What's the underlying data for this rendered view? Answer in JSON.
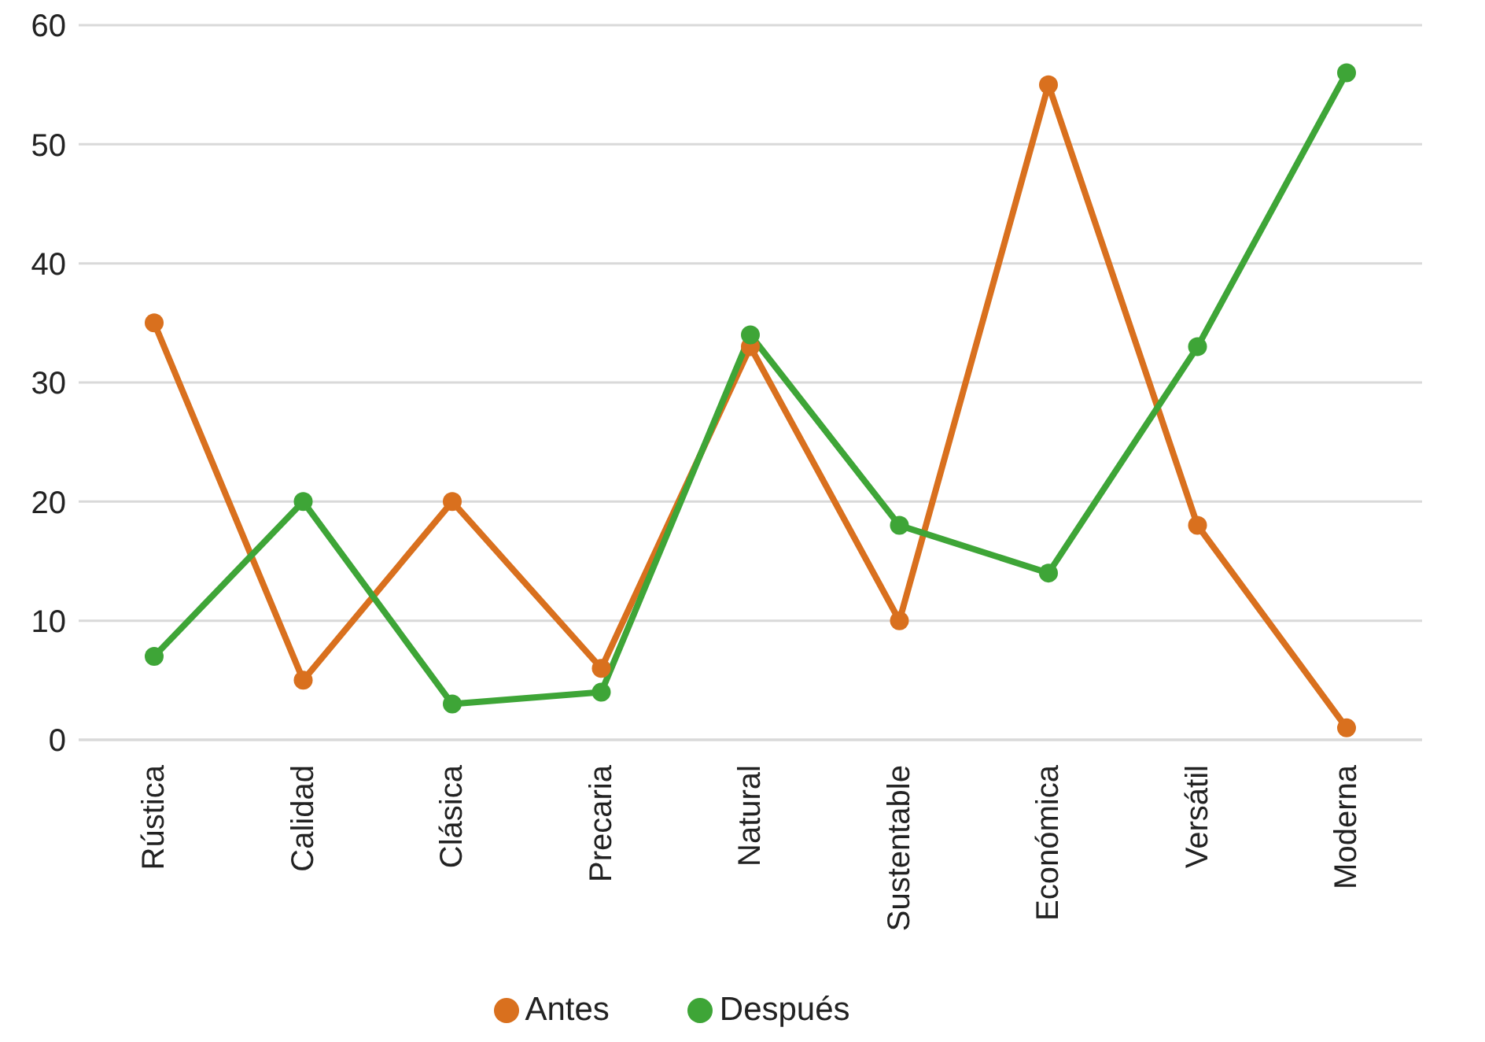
{
  "chart_data": {
    "type": "line",
    "categories": [
      "Rústica",
      "Calidad",
      "Clásica",
      "Precaria",
      "Natural",
      "Sustentable",
      "Económica",
      "Versátil",
      "Moderna"
    ],
    "series": [
      {
        "name": "Antes",
        "color": "#d9701e",
        "values": [
          35,
          5,
          20,
          6,
          33,
          10,
          55,
          18,
          1
        ]
      },
      {
        "name": "Después",
        "color": "#3ea537",
        "values": [
          7,
          20,
          3,
          4,
          34,
          18,
          14,
          33,
          56
        ]
      }
    ],
    "ylim": [
      0,
      60
    ],
    "yticks": [
      0,
      10,
      20,
      30,
      40,
      50,
      60
    ],
    "grid": "y",
    "legend": "bottom",
    "marker": "circle",
    "line_style": "solid"
  }
}
